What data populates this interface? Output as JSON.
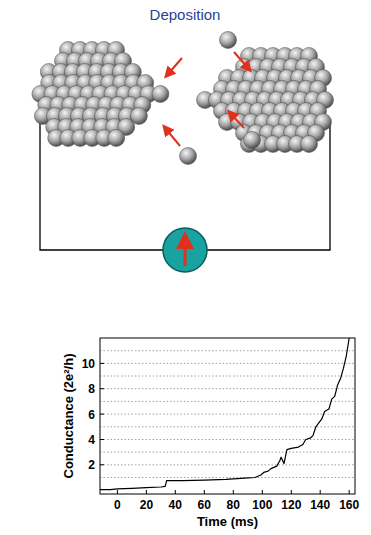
{
  "diagram": {
    "title": "Deposition"
  },
  "chart_data": {
    "type": "line",
    "x_label": "Time (ms)",
    "y_label": "Conductance (2e²/h)",
    "x": [
      -12,
      -5,
      0,
      10,
      20,
      30,
      33,
      34,
      45,
      60,
      75,
      88,
      95,
      99,
      101,
      104,
      106,
      108,
      110,
      112,
      113,
      115,
      117,
      120,
      125,
      128,
      130,
      133,
      135,
      137,
      139,
      141,
      143,
      146,
      148,
      150,
      152,
      154,
      156,
      158,
      160
    ],
    "values": [
      0.05,
      0.05,
      0.1,
      0.15,
      0.2,
      0.25,
      0.3,
      0.75,
      0.75,
      0.8,
      0.85,
      0.95,
      1.0,
      1.2,
      1.4,
      1.5,
      1.7,
      1.8,
      1.9,
      2.3,
      2.6,
      2.1,
      3.2,
      3.3,
      3.4,
      3.6,
      4.0,
      4.1,
      4.3,
      5.0,
      5.3,
      5.6,
      6.2,
      6.4,
      7.2,
      7.4,
      8.3,
      8.8,
      9.6,
      10.6,
      12
    ],
    "xlim": [
      -12,
      164
    ],
    "ylim": [
      -0.3,
      12
    ],
    "xticks": [
      0,
      20,
      40,
      60,
      80,
      100,
      120,
      140,
      160
    ],
    "yticks": [
      2,
      4,
      6,
      8,
      10
    ],
    "grid": true,
    "color": "#000000"
  }
}
